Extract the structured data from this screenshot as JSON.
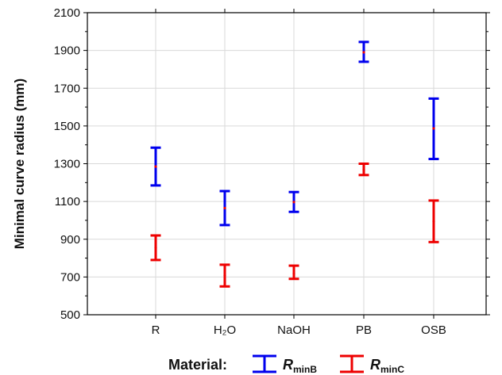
{
  "chart_data": {
    "type": "scatter",
    "title": "",
    "ylabel": "Minimal curve radius (mm)",
    "xlabel": "Material:",
    "ylim": [
      500,
      2100
    ],
    "yticks": [
      500,
      700,
      900,
      1100,
      1300,
      1500,
      1700,
      1900,
      2100
    ],
    "categories": [
      "R",
      "H₂O",
      "NaOH",
      "PB",
      "OSB"
    ],
    "grid": true,
    "legend_position": "bottom",
    "series": [
      {
        "name": "R_minB",
        "label_main": "R",
        "label_sub": "minB",
        "color": "#0000ee",
        "mean": [
          1285,
          1065,
          1097,
          1890,
          1487
        ],
        "lower": [
          1185,
          975,
          1045,
          1840,
          1325
        ],
        "upper": [
          1385,
          1155,
          1150,
          1945,
          1645
        ]
      },
      {
        "name": "R_minC",
        "label_main": "R",
        "label_sub": "minC",
        "color": "#ee0000",
        "mean": [
          855,
          708,
          718,
          1268,
          995
        ],
        "lower": [
          790,
          650,
          690,
          1240,
          885
        ],
        "upper": [
          920,
          765,
          760,
          1300,
          1105
        ]
      }
    ]
  }
}
